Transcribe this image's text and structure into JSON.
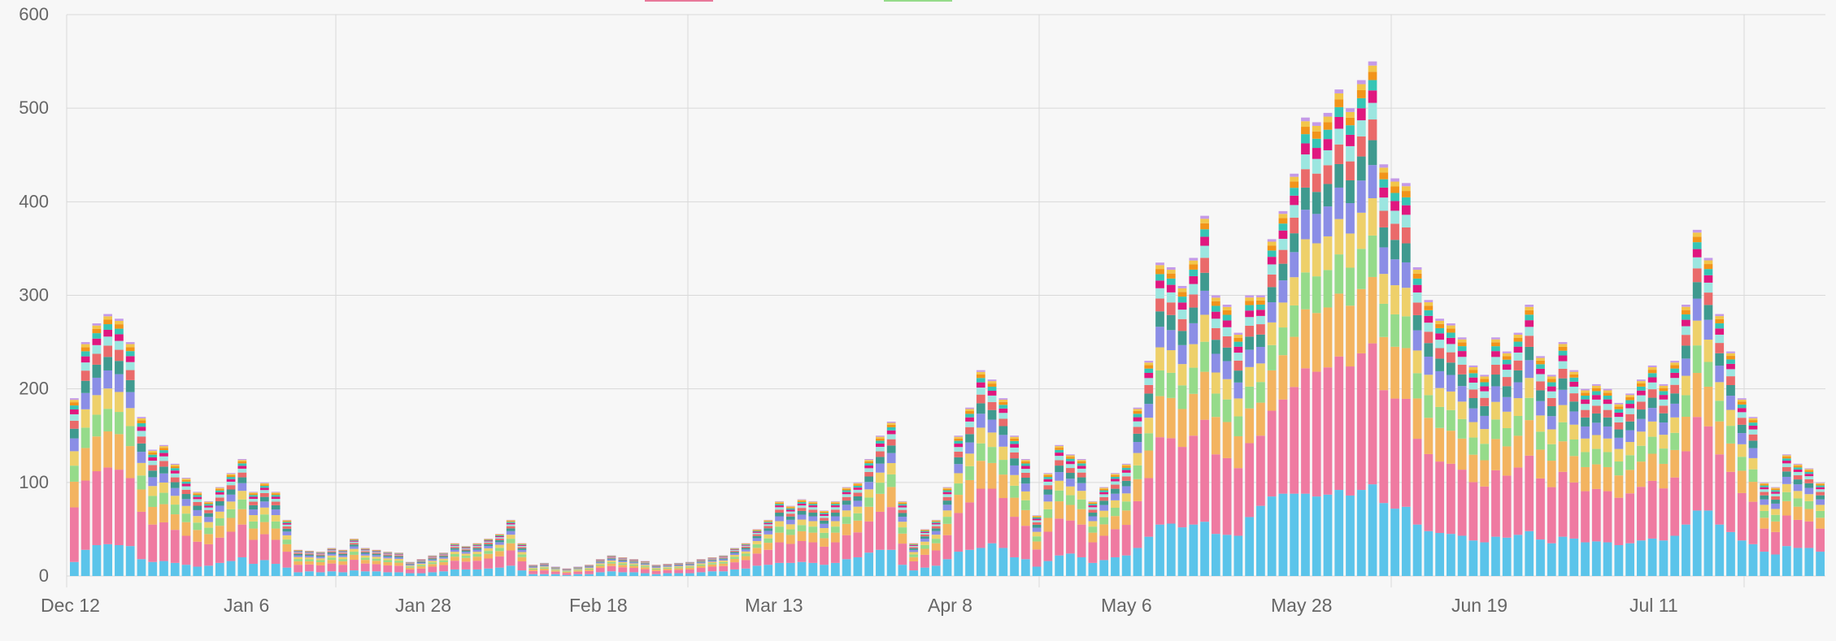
{
  "chart_data": {
    "type": "bar",
    "stacked": true,
    "grid": true,
    "ylim": [
      0,
      600
    ],
    "y_ticks": [
      0,
      100,
      200,
      300,
      400,
      500,
      600
    ],
    "x_tick_labels": [
      "Dec 12",
      "Jan 6",
      "Jan 28",
      "Feb 18",
      "Mar 13",
      "Apr 8",
      "May 6",
      "May 28",
      "Jun 19",
      "Jul 11"
    ],
    "legend_colors": [
      "#e8789a",
      "#95db8a"
    ],
    "series_colors": [
      "#5bc4ea",
      "#ef7aa1",
      "#f3b460",
      "#95db8a",
      "#eed06a",
      "#8b8ee6",
      "#3f9a8f",
      "#ea6a6a",
      "#9ce6e0",
      "#e0177f",
      "#36c5b5",
      "#f2941a",
      "#f2c64a",
      "#c49ae8"
    ],
    "totals": [
      190,
      250,
      270,
      280,
      275,
      250,
      170,
      135,
      140,
      120,
      105,
      90,
      80,
      95,
      110,
      125,
      90,
      100,
      90,
      60,
      28,
      27,
      26,
      30,
      28,
      40,
      30,
      28,
      26,
      25,
      15,
      18,
      22,
      25,
      35,
      32,
      35,
      40,
      45,
      60,
      35,
      12,
      14,
      10,
      8,
      10,
      12,
      18,
      22,
      20,
      18,
      16,
      12,
      13,
      14,
      15,
      18,
      20,
      22,
      30,
      35,
      50,
      60,
      80,
      75,
      82,
      80,
      70,
      80,
      95,
      100,
      125,
      150,
      165,
      80,
      35,
      50,
      60,
      95,
      150,
      180,
      220,
      210,
      190,
      150,
      125,
      65,
      110,
      140,
      130,
      125,
      80,
      95,
      110,
      120,
      180,
      230,
      335,
      330,
      310,
      340,
      385,
      300,
      290,
      260,
      300,
      300,
      360,
      390,
      430,
      490,
      485,
      495,
      520,
      500,
      530,
      550,
      440,
      425,
      420,
      330,
      295,
      275,
      270,
      255,
      225,
      215,
      255,
      240,
      260,
      290,
      235,
      215,
      250,
      220,
      200,
      205,
      200,
      185,
      195,
      210,
      225,
      205,
      230,
      290,
      370,
      340,
      280,
      240,
      190,
      170,
      100,
      95,
      130,
      120,
      115,
      100
    ],
    "base": [
      15,
      28,
      33,
      34,
      33,
      32,
      18,
      15,
      16,
      14,
      12,
      10,
      11,
      14,
      16,
      20,
      13,
      17,
      13,
      9,
      4,
      5,
      4,
      5,
      4,
      6,
      5,
      5,
      4,
      4,
      3,
      3,
      4,
      5,
      7,
      7,
      7,
      8,
      9,
      11,
      6,
      2,
      2,
      2,
      1,
      2,
      2,
      4,
      5,
      4,
      4,
      3,
      2,
      3,
      3,
      3,
      4,
      5,
      5,
      7,
      8,
      11,
      12,
      14,
      14,
      15,
      14,
      12,
      14,
      18,
      20,
      25,
      28,
      28,
      12,
      6,
      9,
      11,
      18,
      26,
      28,
      30,
      35,
      30,
      20,
      18,
      10,
      16,
      22,
      24,
      20,
      14,
      17,
      20,
      22,
      30,
      42,
      55,
      56,
      52,
      55,
      58,
      45,
      44,
      43,
      63,
      75,
      85,
      88,
      88,
      88,
      85,
      87,
      92,
      86,
      92,
      98,
      78,
      72,
      74,
      55,
      48,
      46,
      45,
      43,
      38,
      36,
      42,
      41,
      44,
      48,
      39,
      35,
      42,
      40,
      36,
      37,
      36,
      33,
      35,
      38,
      40,
      38,
      43,
      55,
      70,
      70,
      55,
      47,
      38,
      34,
      26,
      23,
      32,
      30,
      30,
      26
    ]
  }
}
